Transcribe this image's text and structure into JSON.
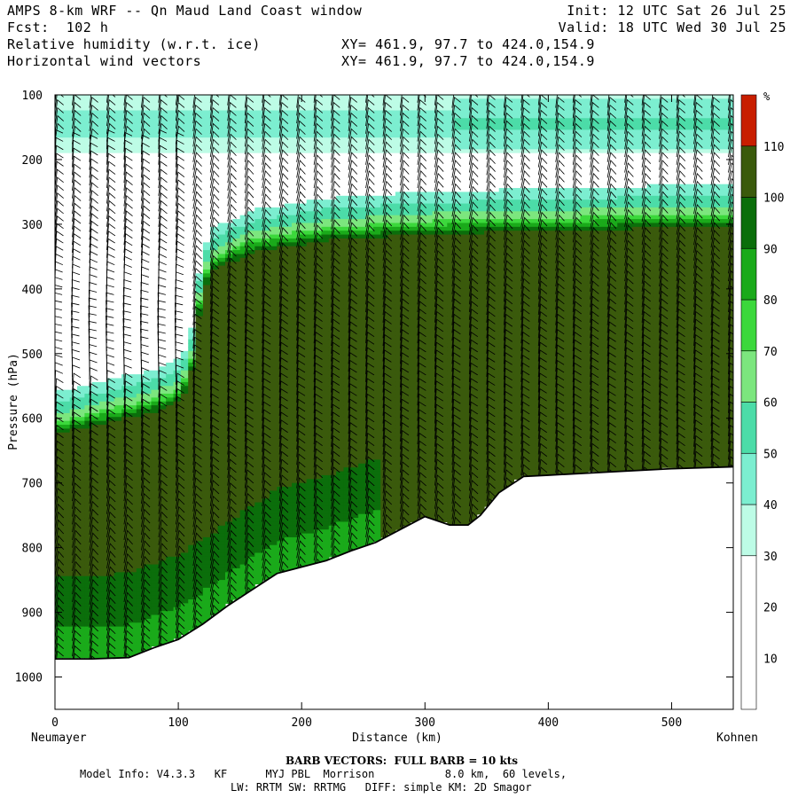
{
  "header": {
    "title": "AMPS 8-km WRF -- Qn Maud Land Coast window",
    "forecast": "Fcst:  102 h",
    "field1": "Relative humidity (w.r.t. ice)",
    "field2": "Horizontal wind vectors",
    "xy1": "XY= 461.9, 97.7 to 424.0,154.9",
    "xy2": "XY= 461.9, 97.7 to 424.0,154.9",
    "init": "Init: 12 UTC Sat 26 Jul 25",
    "valid": "Valid: 18 UTC Wed 30 Jul 25"
  },
  "footer": {
    "barb_note": "BARB VECTORS:  FULL BARB = 10 kts",
    "model_info": "Model Info: V4.3.3   KF      MYJ PBL  Morrison           8.0 km,  60 levels,",
    "physics": "LW: RRTM SW: RRTMG   DIFF: simple KM: 2D Smagor"
  },
  "chart_data": {
    "type": "heatmap",
    "xlabel": "Distance (km)",
    "ylabel": "Pressure (hPa)",
    "xlim": [
      0,
      550
    ],
    "ylim": [
      1050,
      100
    ],
    "x_ticks": [
      0,
      100,
      200,
      300,
      400,
      500
    ],
    "y_ticks": [
      100,
      200,
      300,
      400,
      500,
      600,
      700,
      800,
      900,
      1000
    ],
    "left_label": "Neumayer",
    "right_label": "Kohnen",
    "colorbar": {
      "unit": "%",
      "ticks": [
        10,
        20,
        30,
        40,
        50,
        60,
        70,
        80,
        90,
        100,
        110
      ],
      "bins": [
        {
          "from": 0,
          "to": 30,
          "color": "#ffffff"
        },
        {
          "from": 30,
          "to": 40,
          "color": "#bdfce6"
        },
        {
          "from": 40,
          "to": 50,
          "color": "#7ceed0"
        },
        {
          "from": 50,
          "to": 60,
          "color": "#4cdca8"
        },
        {
          "from": 60,
          "to": 70,
          "color": "#7ce67e"
        },
        {
          "from": 70,
          "to": 80,
          "color": "#3cd83c"
        },
        {
          "from": 80,
          "to": 90,
          "color": "#1aaa1a"
        },
        {
          "from": 90,
          "to": 100,
          "color": "#0b6e0b"
        },
        {
          "from": 100,
          "to": 110,
          "color": "#3a5a0c"
        },
        {
          "from": 110,
          "to": 120,
          "color": "#c81e00"
        }
      ]
    },
    "terrain_surface_hpa": [
      [
        0,
        972
      ],
      [
        30,
        972
      ],
      [
        60,
        970
      ],
      [
        80,
        955
      ],
      [
        100,
        942
      ],
      [
        120,
        918
      ],
      [
        140,
        890
      ],
      [
        160,
        865
      ],
      [
        180,
        840
      ],
      [
        200,
        830
      ],
      [
        220,
        820
      ],
      [
        240,
        805
      ],
      [
        260,
        792
      ],
      [
        280,
        772
      ],
      [
        300,
        752
      ],
      [
        320,
        765
      ],
      [
        335,
        765
      ],
      [
        345,
        750
      ],
      [
        360,
        715
      ],
      [
        380,
        690
      ],
      [
        400,
        688
      ],
      [
        450,
        683
      ],
      [
        500,
        678
      ],
      [
        550,
        675
      ]
    ],
    "moist_top_hpa": [
      [
        0,
        600
      ],
      [
        40,
        582
      ],
      [
        80,
        565
      ],
      [
        100,
        548
      ],
      [
        110,
        520
      ],
      [
        115,
        430
      ],
      [
        125,
        350
      ],
      [
        160,
        318
      ],
      [
        220,
        300
      ],
      [
        300,
        290
      ],
      [
        400,
        285
      ],
      [
        500,
        280
      ],
      [
        550,
        278
      ]
    ],
    "upper_moist_layer_hpa": {
      "top": 100,
      "bottom": 190,
      "from_km": 0,
      "to_km": 550
    },
    "barb_columns_km": [
      0,
      14,
      28,
      42,
      56,
      70,
      84,
      98,
      112,
      126,
      140,
      154,
      168,
      182,
      196,
      210,
      224,
      238,
      252,
      266,
      280,
      294,
      308,
      322,
      336,
      350,
      364,
      378,
      392,
      406,
      420,
      434,
      448,
      462,
      476,
      490,
      504,
      518,
      532,
      546
    ],
    "barb_spacing_hpa": 12
  }
}
